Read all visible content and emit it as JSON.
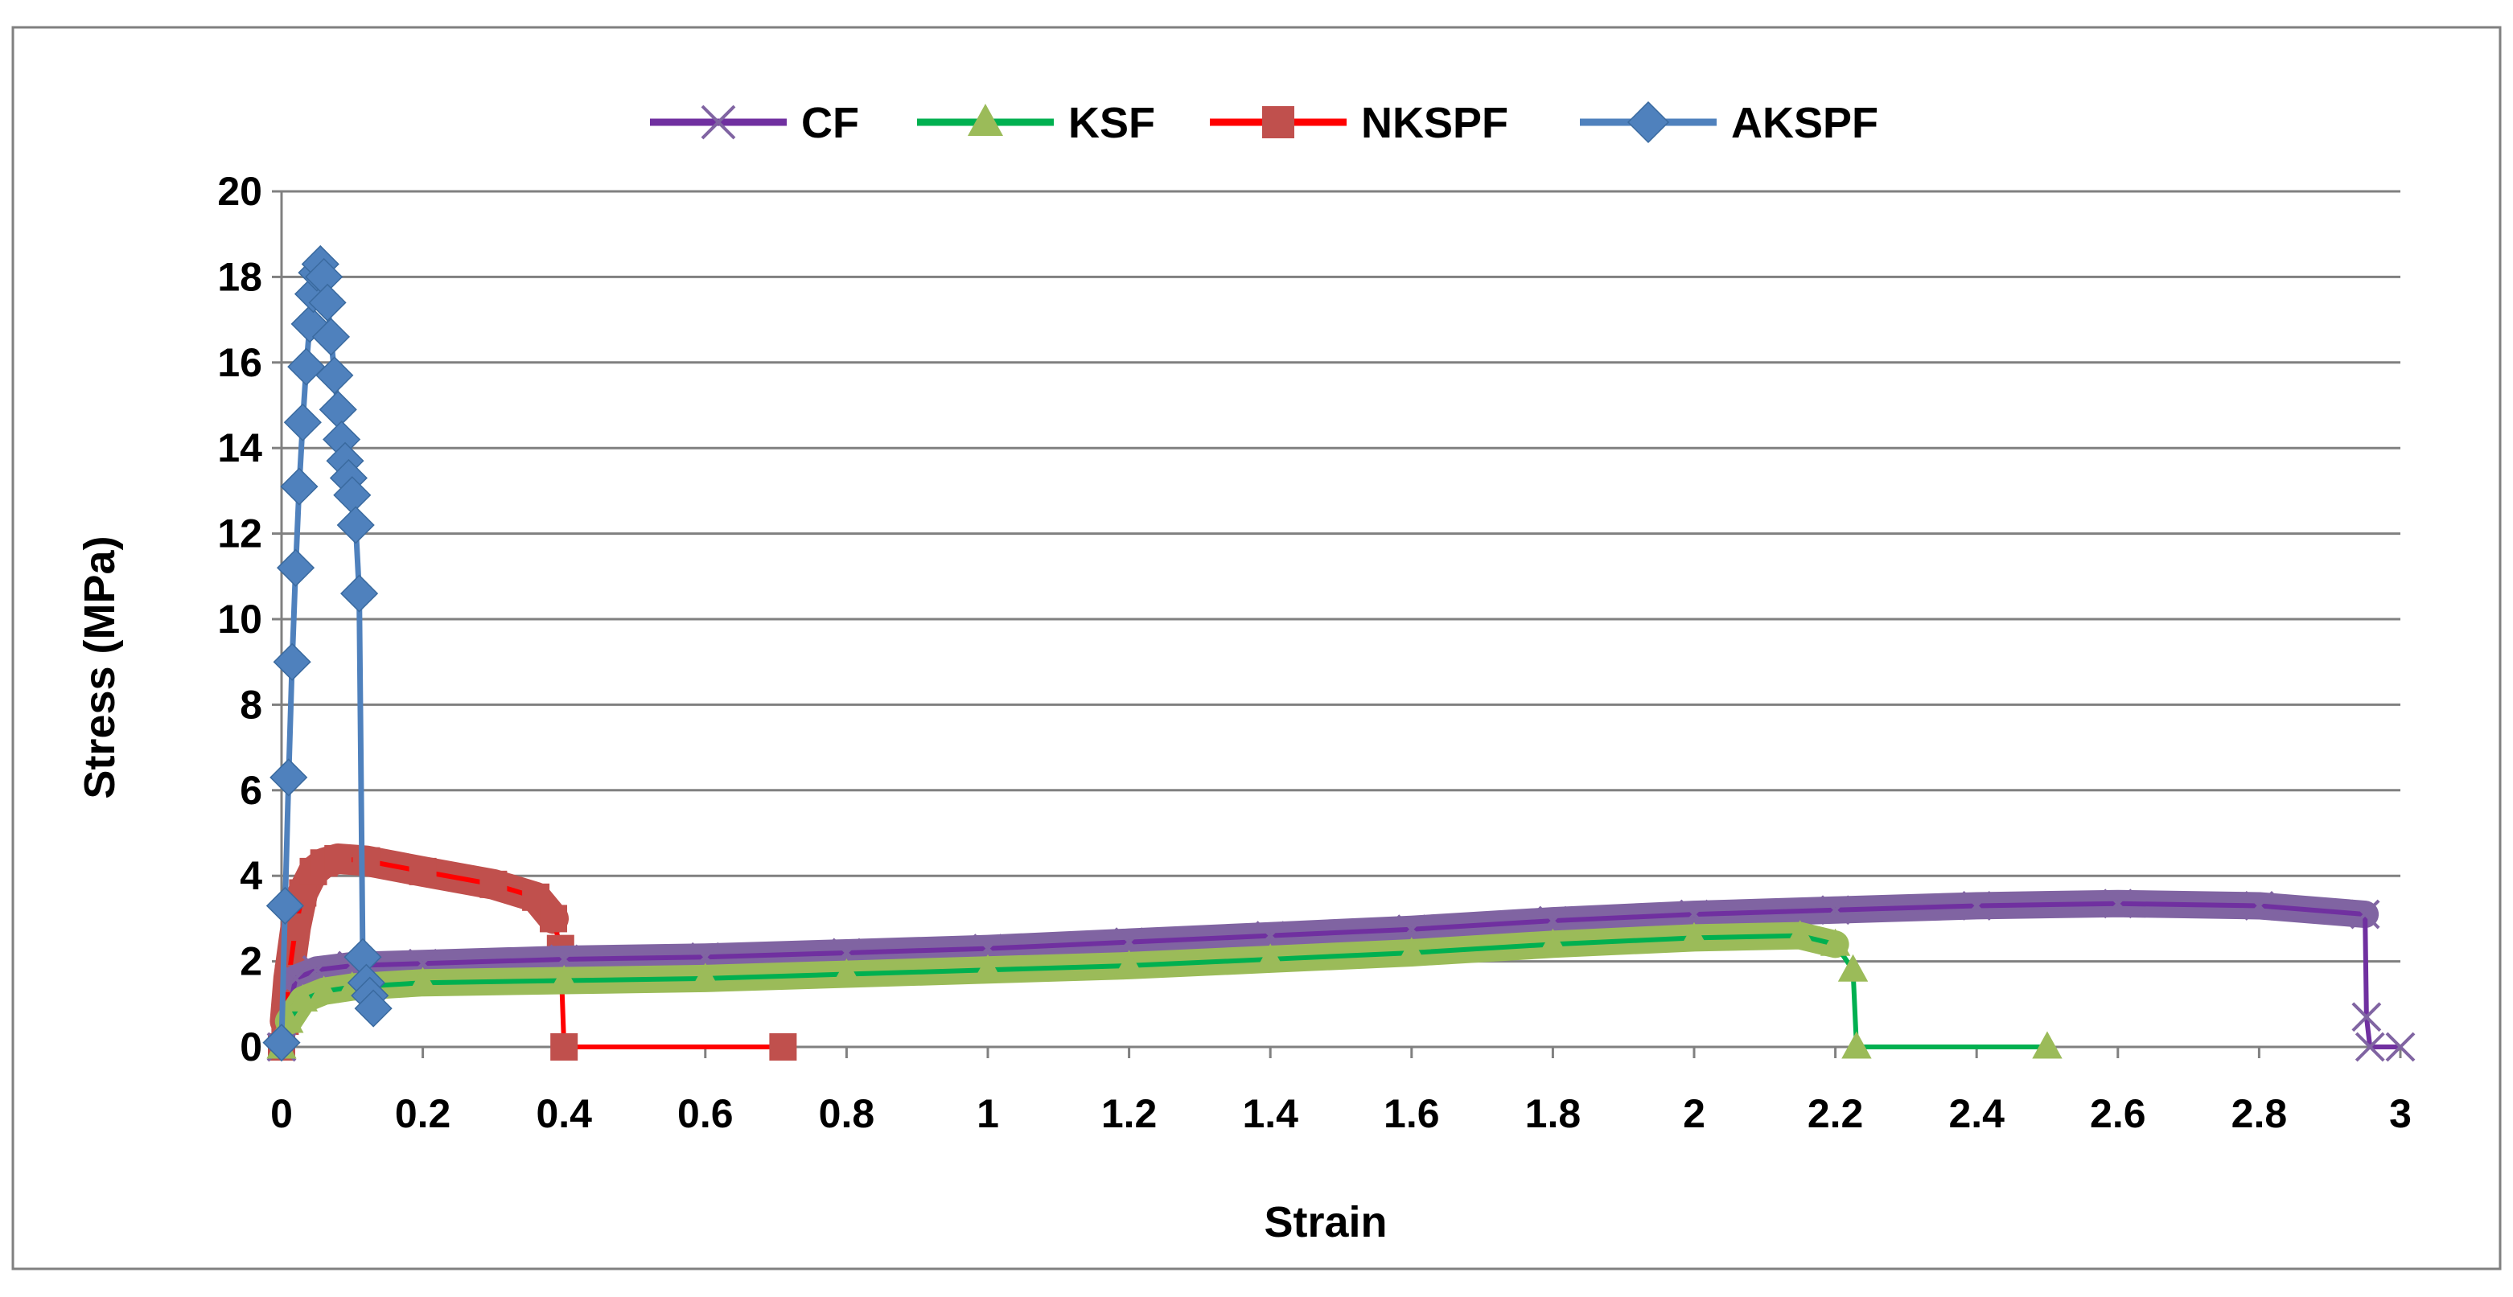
{
  "chart_data": {
    "type": "line",
    "title": "",
    "xlabel": "Strain",
    "ylabel": "Stress (MPa)",
    "xlim": [
      0,
      3
    ],
    "ylim": [
      0,
      20
    ],
    "x_ticks": [
      "0",
      "0.2",
      "0.4",
      "0.6",
      "0.8",
      "1",
      "1.2",
      "1.4",
      "1.6",
      "1.8",
      "2",
      "2.2",
      "2.4",
      "2.6",
      "2.8",
      "3"
    ],
    "y_ticks": [
      "0",
      "2",
      "4",
      "6",
      "8",
      "10",
      "12",
      "14",
      "16",
      "18",
      "20"
    ],
    "grid": "horizontal",
    "legend_position": "top",
    "series": [
      {
        "name": "CF",
        "color": "#7030A0",
        "marker": "x",
        "points": [
          [
            0,
            0
          ],
          [
            0.02,
            1.6
          ],
          [
            0.05,
            1.8
          ],
          [
            0.1,
            1.9
          ],
          [
            0.2,
            1.95
          ],
          [
            0.4,
            2.05
          ],
          [
            0.6,
            2.1
          ],
          [
            0.8,
            2.2
          ],
          [
            1.0,
            2.3
          ],
          [
            1.2,
            2.45
          ],
          [
            1.4,
            2.6
          ],
          [
            1.6,
            2.75
          ],
          [
            1.8,
            2.95
          ],
          [
            2.0,
            3.1
          ],
          [
            2.2,
            3.2
          ],
          [
            2.4,
            3.3
          ],
          [
            2.6,
            3.35
          ],
          [
            2.8,
            3.3
          ],
          [
            2.95,
            3.1
          ],
          [
            2.952,
            0.7
          ],
          [
            2.957,
            0
          ],
          [
            3.0,
            0
          ]
        ]
      },
      {
        "name": "KSF",
        "color": "#00B050",
        "marker": "triangle",
        "points": [
          [
            0,
            0
          ],
          [
            0.01,
            0.6
          ],
          [
            0.03,
            1.1
          ],
          [
            0.06,
            1.3
          ],
          [
            0.1,
            1.4
          ],
          [
            0.2,
            1.5
          ],
          [
            0.4,
            1.55
          ],
          [
            0.6,
            1.6
          ],
          [
            0.8,
            1.7
          ],
          [
            1.0,
            1.8
          ],
          [
            1.2,
            1.9
          ],
          [
            1.4,
            2.05
          ],
          [
            1.6,
            2.2
          ],
          [
            1.8,
            2.4
          ],
          [
            2.0,
            2.55
          ],
          [
            2.15,
            2.6
          ],
          [
            2.2,
            2.4
          ],
          [
            2.225,
            1.8
          ],
          [
            2.23,
            0
          ],
          [
            2.5,
            0
          ]
        ]
      },
      {
        "name": "NKSPF",
        "color": "#FF0000",
        "marker": "square",
        "points": [
          [
            0,
            0
          ],
          [
            0.005,
            0.6
          ],
          [
            0.01,
            1.6
          ],
          [
            0.02,
            2.8
          ],
          [
            0.03,
            3.6
          ],
          [
            0.045,
            4.1
          ],
          [
            0.06,
            4.3
          ],
          [
            0.08,
            4.4
          ],
          [
            0.12,
            4.35
          ],
          [
            0.2,
            4.1
          ],
          [
            0.3,
            3.8
          ],
          [
            0.36,
            3.5
          ],
          [
            0.385,
            3.0
          ],
          [
            0.395,
            2.3
          ],
          [
            0.4,
            0
          ],
          [
            0.71,
            0
          ]
        ]
      },
      {
        "name": "AKSPF",
        "color": "#4F81BD",
        "marker": "diamond",
        "points": [
          [
            0,
            0.1
          ],
          [
            0.005,
            3.3
          ],
          [
            0.01,
            6.3
          ],
          [
            0.015,
            9.0
          ],
          [
            0.02,
            11.2
          ],
          [
            0.025,
            13.1
          ],
          [
            0.03,
            14.6
          ],
          [
            0.035,
            15.9
          ],
          [
            0.04,
            16.9
          ],
          [
            0.045,
            17.6
          ],
          [
            0.05,
            18.1
          ],
          [
            0.055,
            18.3
          ],
          [
            0.06,
            18.0
          ],
          [
            0.065,
            17.4
          ],
          [
            0.07,
            16.6
          ],
          [
            0.075,
            15.7
          ],
          [
            0.08,
            14.9
          ],
          [
            0.085,
            14.2
          ],
          [
            0.09,
            13.7
          ],
          [
            0.095,
            13.3
          ],
          [
            0.1,
            12.9
          ],
          [
            0.105,
            12.2
          ],
          [
            0.11,
            10.6
          ],
          [
            0.115,
            2.1
          ],
          [
            0.12,
            1.5
          ],
          [
            0.125,
            1.2
          ],
          [
            0.13,
            0.9
          ]
        ]
      }
    ]
  }
}
